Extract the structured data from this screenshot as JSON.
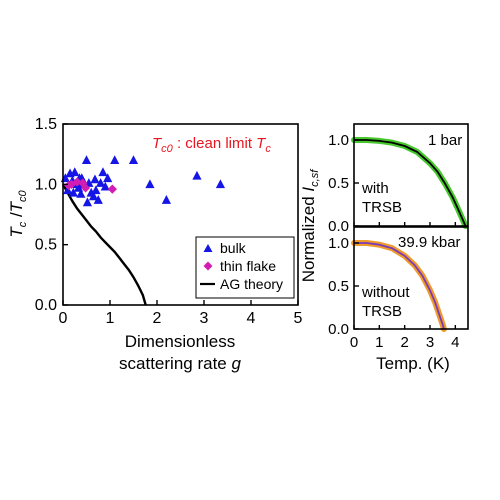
{
  "chart_data": [
    {
      "type": "scatter",
      "xlabel_line1": "Dimensionless",
      "xlabel_line2": "scattering rate",
      "xlabel_symbol": "g",
      "ylabel_main": "T",
      "ylabel_sub1": "c",
      "ylabel_sep": " /",
      "ylabel_main2": "T",
      "ylabel_sub2": "c0",
      "xlim": [
        0,
        5
      ],
      "ylim": [
        0,
        1.5
      ],
      "xticks": [
        0,
        1,
        2,
        3,
        4,
        5
      ],
      "yticks": [
        0.0,
        0.5,
        1.0,
        1.5
      ],
      "xticklabels": [
        "0",
        "1",
        "2",
        "3",
        "4",
        "5"
      ],
      "yticklabels": [
        "0.0",
        "0.5",
        "1.0",
        "1.5"
      ],
      "annotation": {
        "sym": "T",
        "sym_sub": "c0",
        "text": " : clean limit ",
        "sym2": "T",
        "sym2_sub": "c",
        "color": "#e8141f"
      },
      "series": [
        {
          "name": "bulk",
          "marker": "triangle",
          "color": "#1515e6",
          "x": [
            0.05,
            0.1,
            0.15,
            0.2,
            0.22,
            0.25,
            0.3,
            0.33,
            0.35,
            0.38,
            0.4,
            0.42,
            0.45,
            0.5,
            0.52,
            0.55,
            0.6,
            0.65,
            0.68,
            0.7,
            0.75,
            0.8,
            0.85,
            0.9,
            0.95,
            1.1,
            1.5,
            1.85,
            2.2,
            2.85,
            3.35
          ],
          "y": [
            1.05,
            0.95,
            1.09,
            1.03,
            0.93,
            1.1,
            1.0,
            0.97,
            1.05,
            0.92,
            1.05,
            1.0,
            1.01,
            1.2,
            0.85,
            1.01,
            0.93,
            0.9,
            1.04,
            0.95,
            0.87,
            1.01,
            1.1,
            0.98,
            1.05,
            1.2,
            1.2,
            1.0,
            0.87,
            1.07,
            1.0
          ]
        },
        {
          "name": "thin flake",
          "marker": "diamond",
          "color": "#d21db4",
          "x": [
            0.12,
            0.18,
            0.3,
            0.42,
            0.48,
            1.05
          ],
          "y": [
            0.99,
            1.0,
            1.02,
            1.01,
            0.97,
            0.96
          ]
        },
        {
          "name": "AG theory",
          "marker": "line",
          "color": "#000000",
          "x": [
            0.0,
            0.1,
            0.2,
            0.3,
            0.4,
            0.5,
            0.6,
            0.7,
            0.8,
            0.9,
            1.0,
            1.1,
            1.2,
            1.3,
            1.4,
            1.5,
            1.6,
            1.65,
            1.7,
            1.73,
            1.76
          ],
          "y": [
            1.0,
            0.93,
            0.86,
            0.8,
            0.75,
            0.7,
            0.65,
            0.61,
            0.56,
            0.52,
            0.48,
            0.44,
            0.39,
            0.34,
            0.29,
            0.23,
            0.16,
            0.12,
            0.08,
            0.04,
            0.0
          ]
        }
      ],
      "legend_placement": "bottom-right",
      "grid": false
    },
    {
      "type": "line",
      "ylabel_prefix": "Normalized ",
      "ylabel_symbol": "I",
      "ylabel_sub": "c,sf",
      "xlabel": "Temp. (K)",
      "xlim": [
        0,
        4.5
      ],
      "ylim": [
        0,
        1.0
      ],
      "yticks": [
        0.0,
        0.5,
        1.0
      ],
      "yticklabels": [
        "0.0",
        "0.5",
        "1.0"
      ],
      "xticks": [
        0,
        1,
        2,
        3,
        4
      ],
      "xticklabels": [
        "0",
        "1",
        "2",
        "3",
        "4"
      ],
      "panels": [
        {
          "label": "1 bar",
          "text_line1": "with",
          "text_line2": "TRSB",
          "data_color": "#46c82d",
          "fit_color": "#000000",
          "x": [
            0.0,
            0.5,
            1.0,
            1.5,
            2.0,
            2.5,
            3.0,
            3.3,
            3.6,
            3.9,
            4.1,
            4.3,
            4.4
          ],
          "y": [
            1.0,
            1.0,
            0.99,
            0.97,
            0.93,
            0.86,
            0.73,
            0.63,
            0.49,
            0.33,
            0.2,
            0.07,
            0.0
          ]
        },
        {
          "label": "39.9 kbar",
          "text_line1": "without",
          "text_line2": "TRSB",
          "data_color": "#ef9a2a",
          "fit_color": "#7a3bb8",
          "x": [
            0.0,
            0.5,
            1.0,
            1.5,
            2.0,
            2.4,
            2.7,
            3.0,
            3.2,
            3.4,
            3.5,
            3.55
          ],
          "y": [
            1.0,
            1.0,
            0.98,
            0.94,
            0.85,
            0.74,
            0.62,
            0.45,
            0.31,
            0.14,
            0.05,
            0.0
          ]
        }
      ],
      "grid": false
    }
  ]
}
